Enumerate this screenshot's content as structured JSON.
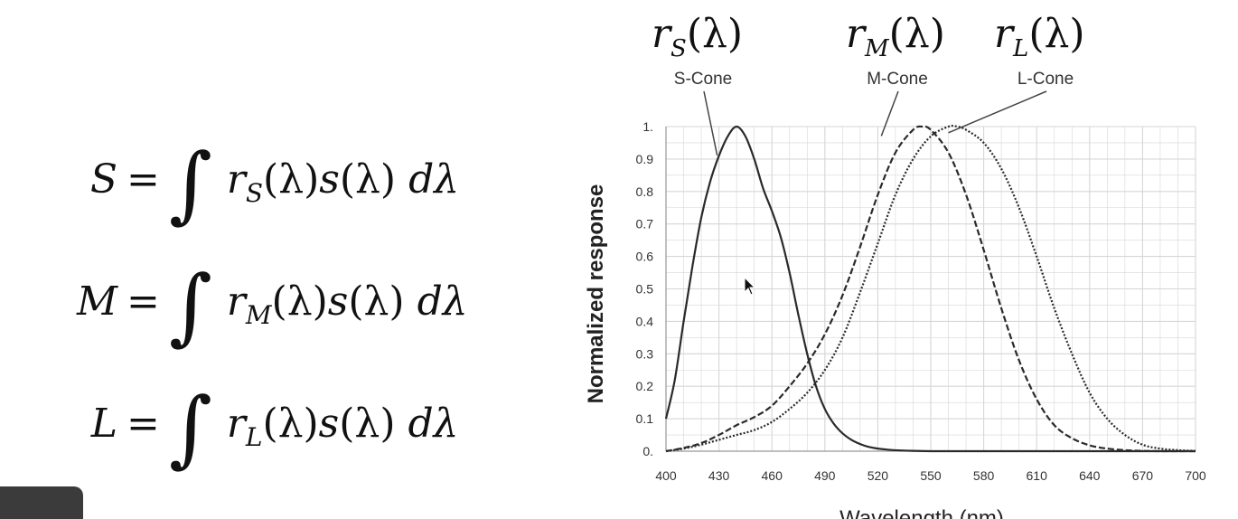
{
  "equations": [
    {
      "lhs": "S",
      "func": "r",
      "sub": "S"
    },
    {
      "lhs": "M",
      "func": "r",
      "sub": "M"
    },
    {
      "lhs": "L",
      "func": "r",
      "sub": "L"
    }
  ],
  "equation_parts": {
    "equals": "=",
    "integral": "∫",
    "lambda_arg": "(λ)",
    "s_func": "s",
    "dlambda": "dλ"
  },
  "chart_data": {
    "type": "line",
    "xlabel": "Wavelength (nm)",
    "ylabel": "Normalized response",
    "xlim": [
      400,
      700
    ],
    "ylim": [
      0,
      1
    ],
    "grid": true,
    "x_ticks": [
      "400",
      "430",
      "460",
      "490",
      "520",
      "550",
      "580",
      "610",
      "640",
      "670",
      "700"
    ],
    "y_ticks": [
      "0.",
      "0.1",
      "0.2",
      "0.3",
      "0.4",
      "0.5",
      "0.6",
      "0.7",
      "0.8",
      "0.9",
      "1."
    ],
    "series": [
      {
        "name": "S-Cone",
        "func_label": {
          "base": "r",
          "sub": "S",
          "arg": "(λ)"
        },
        "style": "solid",
        "pointer_at": [
          429,
          0.9
        ],
        "x": [
          400,
          405,
          410,
          415,
          420,
          425,
          430,
          435,
          440,
          445,
          450,
          455,
          460,
          465,
          470,
          475,
          480,
          485,
          490,
          495,
          500,
          505,
          510,
          515,
          520,
          525,
          530,
          540,
          550,
          560,
          580,
          700
        ],
        "y": [
          0.1,
          0.22,
          0.4,
          0.57,
          0.72,
          0.83,
          0.91,
          0.97,
          1.0,
          0.97,
          0.9,
          0.81,
          0.74,
          0.66,
          0.55,
          0.42,
          0.3,
          0.2,
          0.13,
          0.085,
          0.055,
          0.035,
          0.022,
          0.013,
          0.008,
          0.005,
          0.003,
          0.001,
          0.0,
          0.0,
          0.0,
          0.0
        ]
      },
      {
        "name": "M-Cone",
        "func_label": {
          "base": "r",
          "sub": "M",
          "arg": "(λ)"
        },
        "style": "dashed",
        "pointer_at": [
          522,
          0.96
        ],
        "x": [
          400,
          410,
          420,
          430,
          440,
          450,
          460,
          470,
          480,
          490,
          500,
          510,
          520,
          530,
          540,
          545,
          550,
          560,
          570,
          580,
          590,
          600,
          610,
          620,
          630,
          640,
          650,
          660,
          670,
          680,
          690,
          700
        ],
        "y": [
          0.0,
          0.01,
          0.025,
          0.05,
          0.08,
          0.105,
          0.14,
          0.2,
          0.27,
          0.36,
          0.48,
          0.63,
          0.79,
          0.92,
          0.99,
          1.0,
          0.99,
          0.92,
          0.79,
          0.62,
          0.44,
          0.28,
          0.16,
          0.08,
          0.04,
          0.018,
          0.008,
          0.003,
          0.001,
          0.0,
          0.0,
          0.0
        ]
      },
      {
        "name": "L-Cone",
        "func_label": {
          "base": "r",
          "sub": "L",
          "arg": "(λ)"
        },
        "style": "dotted",
        "pointer_at": [
          560,
          0.97
        ],
        "x": [
          400,
          410,
          420,
          430,
          440,
          450,
          460,
          470,
          480,
          490,
          500,
          510,
          520,
          530,
          540,
          550,
          560,
          565,
          570,
          580,
          590,
          600,
          610,
          620,
          630,
          640,
          650,
          660,
          670,
          680,
          690,
          700
        ],
        "y": [
          0.0,
          0.008,
          0.02,
          0.035,
          0.05,
          0.065,
          0.09,
          0.13,
          0.18,
          0.25,
          0.35,
          0.49,
          0.64,
          0.79,
          0.9,
          0.97,
          1.0,
          1.0,
          0.99,
          0.95,
          0.87,
          0.75,
          0.6,
          0.44,
          0.3,
          0.18,
          0.1,
          0.05,
          0.02,
          0.008,
          0.003,
          0.001
        ]
      }
    ]
  },
  "colors": {
    "curve": "#2a2a2a",
    "grid": "#d6d6d6",
    "text": "#111111",
    "thumbnail": "#3b3b3b"
  }
}
